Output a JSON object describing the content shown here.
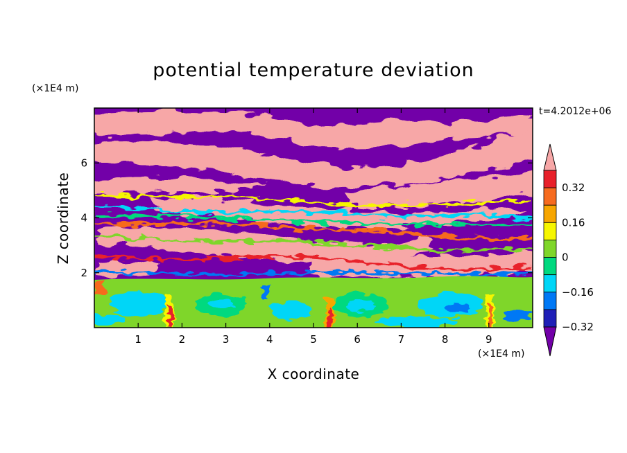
{
  "chart_data": {
    "type": "heatmap",
    "title": "potential temperature deviation",
    "xlabel": "X coordinate",
    "ylabel": "Z coordinate",
    "x_unit": "(×1E4 m)",
    "y_unit": "(×1E4 m)",
    "time_label": "t=4.2012e+06",
    "xlim": [
      0,
      10
    ],
    "ylim": [
      0,
      8
    ],
    "x_ticks": [
      "1",
      "2",
      "3",
      "4",
      "5",
      "6",
      "7",
      "8",
      "9"
    ],
    "y_ticks": [
      "2",
      "4",
      "6"
    ],
    "colorbar": {
      "levels": [
        -0.4,
        -0.32,
        -0.24,
        -0.16,
        -0.08,
        0,
        0.08,
        0.16,
        0.24,
        0.32,
        0.4
      ],
      "tick_labels": [
        "0.32",
        "0.16",
        "0",
        "−0.16",
        "−0.32"
      ],
      "colors_high_to_low": [
        "#f7a7a7",
        "#e8202a",
        "#f66b1f",
        "#f7a600",
        "#f6f600",
        "#7fd62a",
        "#00d97f",
        "#00d6f7",
        "#0078f5",
        "#1f1fb7",
        "#7200a8"
      ]
    },
    "bands_z": [
      {
        "z_top": 8.0,
        "z_bottom": 1.8,
        "description": "alternating layers of high (pink) and low (purple) deviation"
      },
      {
        "z_top": 1.8,
        "z_bottom": 0.0,
        "description": "near-zero deviation with eddies (green/cyan/yellow)"
      }
    ]
  }
}
